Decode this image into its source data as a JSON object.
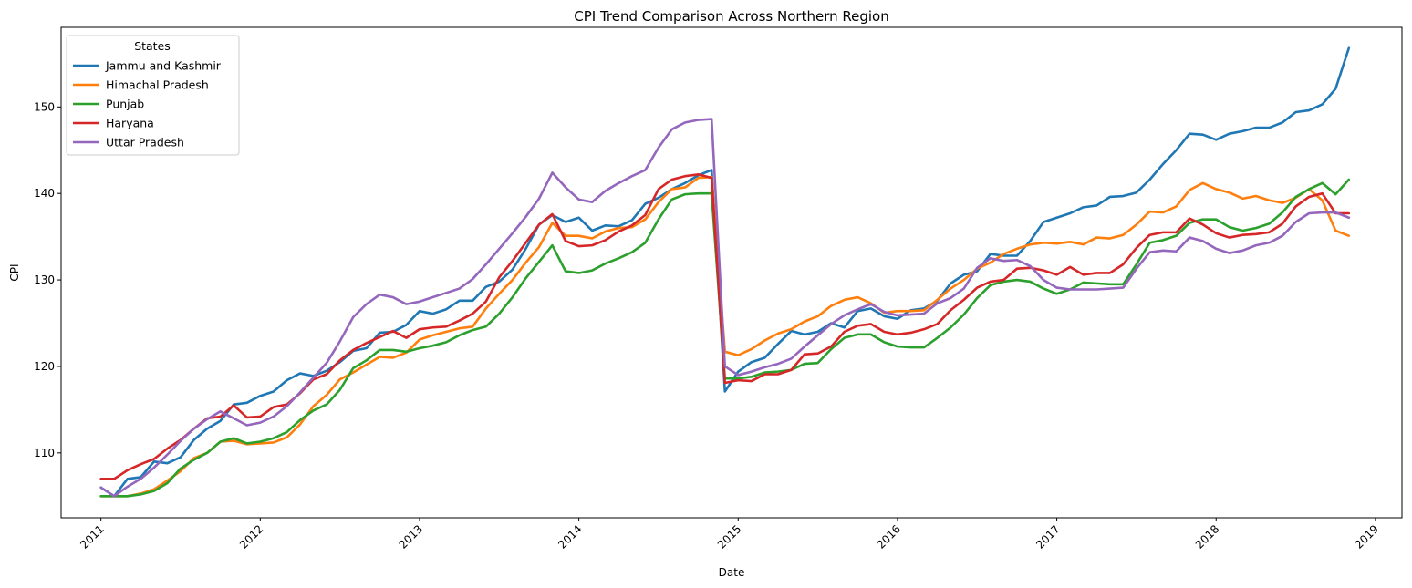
{
  "chart_data": {
    "type": "line",
    "title": "CPI Trend Comparison Across Northern Region",
    "xlabel": "Date",
    "ylabel": "CPI",
    "x_start": "2011-01",
    "x_frequency": "monthly",
    "xlim": [
      "2010-10",
      "2019-03"
    ],
    "ylim": [
      102.5,
      159.2
    ],
    "x_ticks": [
      "2011",
      "2012",
      "2013",
      "2014",
      "2015",
      "2016",
      "2017",
      "2018",
      "2019"
    ],
    "y_ticks": [
      110,
      120,
      130,
      140,
      150
    ],
    "grid": false,
    "legend": {
      "title": "States",
      "placement": "top-left"
    },
    "series": [
      {
        "name": "Jammu and Kashmir",
        "color": "#1f77b4",
        "values": [
          106,
          105,
          107,
          107.2,
          109,
          108.8,
          109.5,
          111.5,
          112.8,
          113.7,
          115.6,
          115.8,
          116.6,
          117.1,
          118.4,
          119.2,
          118.9,
          119.5,
          120.5,
          121.8,
          122.1,
          123.9,
          124,
          124.8,
          126.4,
          126.1,
          126.6,
          127.6,
          127.6,
          129.2,
          129.8,
          131.2,
          133.6,
          136.4,
          137.5,
          136.7,
          137.2,
          135.7,
          136.3,
          136.2,
          136.9,
          138.8,
          139.5,
          140.5,
          141.2,
          142.1,
          142.7,
          117.1,
          119.4,
          120.5,
          121,
          122.6,
          124.1,
          123.7,
          124,
          125,
          124.5,
          126.4,
          126.7,
          125.8,
          125.5,
          126.5,
          126.7,
          127.6,
          129.6,
          130.6,
          131,
          133,
          132.8,
          132.8,
          134.5,
          136.7,
          137.2,
          137.7,
          138.4,
          138.6,
          139.6,
          139.7,
          140.1,
          141.6,
          143.4,
          145,
          146.9,
          146.8,
          146.2,
          146.9,
          147.2,
          147.6,
          147.6,
          148.2,
          149.4,
          149.6,
          150.3,
          152.1,
          156.8
        ]
      },
      {
        "name": "Himachal Pradesh",
        "color": "#ff7f0e",
        "values": [
          105,
          105,
          105,
          105.3,
          105.8,
          106.8,
          107.9,
          109.4,
          110,
          111.3,
          111.4,
          111,
          111.1,
          111.2,
          111.8,
          113.3,
          115.4,
          116.7,
          118.5,
          119.3,
          120.2,
          121.1,
          121,
          121.6,
          123.1,
          123.6,
          124,
          124.4,
          124.6,
          126.7,
          128.4,
          130,
          132,
          133.8,
          136.6,
          135.1,
          135.1,
          134.8,
          135.6,
          136,
          136.1,
          137,
          139,
          140.5,
          140.7,
          141.8,
          141.9,
          121.7,
          121.3,
          122,
          123,
          123.8,
          124.3,
          125.2,
          125.8,
          127,
          127.7,
          128,
          127.3,
          126.2,
          126.4,
          126.4,
          126.5,
          127.7,
          129,
          130,
          131.3,
          132,
          133,
          133.6,
          134.1,
          134.3,
          134.2,
          134.4,
          134.1,
          134.9,
          134.8,
          135.2,
          136.4,
          137.9,
          137.8,
          138.5,
          140.4,
          141.2,
          140.5,
          140.1,
          139.4,
          139.7,
          139.2,
          138.9,
          139.5,
          140.5,
          139.2,
          135.7,
          135.1
        ]
      },
      {
        "name": "Punjab",
        "color": "#2ca02c",
        "values": [
          105,
          105,
          105,
          105.2,
          105.6,
          106.5,
          108.2,
          109.2,
          110,
          111.3,
          111.7,
          111.1,
          111.3,
          111.7,
          112.4,
          113.8,
          114.9,
          115.6,
          117.3,
          119.8,
          120.7,
          121.9,
          121.9,
          121.7,
          122.1,
          122.4,
          122.8,
          123.6,
          124.2,
          124.6,
          126.1,
          128,
          130.2,
          132.1,
          134,
          131,
          130.8,
          131.1,
          131.9,
          132.5,
          133.2,
          134.3,
          137,
          139.3,
          139.9,
          140,
          140,
          118.6,
          118.6,
          118.8,
          119.3,
          119.4,
          119.6,
          120.3,
          120.4,
          122,
          123.3,
          123.7,
          123.7,
          122.8,
          122.3,
          122.2,
          122.2,
          123.3,
          124.5,
          126,
          127.9,
          129.4,
          129.8,
          130,
          129.8,
          129,
          128.4,
          128.9,
          129.7,
          129.6,
          129.5,
          129.5,
          131.8,
          134.3,
          134.6,
          135.1,
          136.6,
          137,
          137,
          136.1,
          135.7,
          136,
          136.5,
          137.8,
          139.6,
          140.5,
          141.2,
          139.9,
          141.6
        ]
      },
      {
        "name": "Haryana",
        "color": "#d62728",
        "values": [
          107,
          107,
          108,
          108.7,
          109.3,
          110.5,
          111.5,
          112.8,
          114,
          114.2,
          115.5,
          114.1,
          114.2,
          115.3,
          115.6,
          116.9,
          118.5,
          119.1,
          120.7,
          121.9,
          122.7,
          123.4,
          124.1,
          123.3,
          124.3,
          124.5,
          124.6,
          125.3,
          126.1,
          127.5,
          130.3,
          132.2,
          134.3,
          136.4,
          137.6,
          134.5,
          133.9,
          134,
          134.6,
          135.6,
          136.3,
          137.5,
          140.5,
          141.6,
          142,
          142.2,
          141.8,
          118.1,
          118.4,
          118.3,
          119.1,
          119.1,
          119.6,
          121.4,
          121.5,
          122.3,
          124,
          124.7,
          124.9,
          124,
          123.7,
          123.9,
          124.3,
          124.9,
          126.5,
          127.7,
          129.1,
          129.8,
          130,
          131.3,
          131.4,
          131.1,
          130.6,
          131.5,
          130.6,
          130.8,
          130.8,
          131.8,
          133.7,
          135.2,
          135.5,
          135.5,
          137.1,
          136.4,
          135.4,
          134.9,
          135.2,
          135.3,
          135.5,
          136.5,
          138.5,
          139.6,
          140,
          137.7,
          137.7
        ]
      },
      {
        "name": "Uttar Pradesh",
        "color": "#9467bd",
        "values": [
          106,
          105,
          106.1,
          107,
          108.3,
          109.8,
          111.4,
          112.8,
          113.9,
          114.8,
          114,
          113.2,
          113.5,
          114.2,
          115.4,
          117,
          118.7,
          120.4,
          122.9,
          125.7,
          127.2,
          128.3,
          128,
          127.2,
          127.5,
          128,
          128.5,
          129,
          130.1,
          131.8,
          133.6,
          135.4,
          137.3,
          139.4,
          142.4,
          140.7,
          139.3,
          139,
          140.3,
          141.2,
          142,
          142.7,
          145.3,
          147.4,
          148.2,
          148.5,
          148.6,
          120,
          119,
          119.4,
          119.9,
          120.3,
          120.9,
          122.3,
          123.6,
          124.9,
          125.9,
          126.6,
          127.2,
          126.3,
          125.9,
          126,
          126.1,
          127.3,
          127.9,
          129,
          131.4,
          132.5,
          132.2,
          132.3,
          131.6,
          130,
          129.1,
          128.9,
          128.9,
          128.9,
          129,
          129.1,
          131.3,
          133.2,
          133.4,
          133.3,
          134.9,
          134.5,
          133.6,
          133.1,
          133.4,
          134,
          134.3,
          135.1,
          136.7,
          137.7,
          137.8,
          137.8,
          137.2
        ]
      }
    ]
  }
}
